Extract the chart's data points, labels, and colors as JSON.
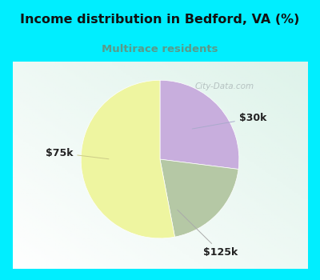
{
  "title": "Income distribution in Bedford, VA (%)",
  "subtitle": "Multirace residents",
  "title_color": "#111111",
  "subtitle_color": "#5a9a8a",
  "top_bg_color": "#00eeff",
  "border_color": "#00eeff",
  "chart_bg_top": "#d8ede6",
  "chart_bg_bottom": "#eef8f2",
  "slices": [
    {
      "label": "$30k",
      "value": 27,
      "color": "#c8aedd"
    },
    {
      "label": "$125k",
      "value": 20,
      "color": "#b5c8a5"
    },
    {
      "label": "$75k",
      "value": 53,
      "color": "#eef5a0"
    }
  ],
  "label_color": "#222222",
  "label_fontsize": 9,
  "pie_startangle": 90,
  "watermark_text": "City-Data.com",
  "watermark_color": "#b0bcbc",
  "border_width": 0.04
}
